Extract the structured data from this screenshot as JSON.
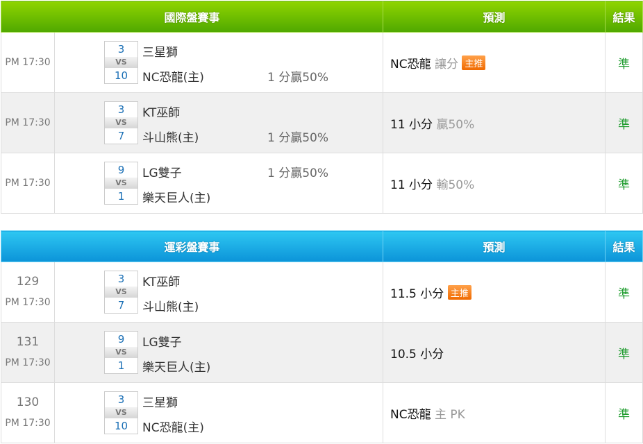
{
  "intl": {
    "title": "國際盤賽事",
    "pred_header": "預測",
    "result_header": "結果",
    "rows": [
      {
        "time": "PM 17:30",
        "home_score": "3",
        "away_score": "10",
        "vs": "VS",
        "team1": "三星獅",
        "team2": "NC恐龍(主)",
        "handicap1": "",
        "handicap2": "1 分贏50%",
        "pred_main": "NC恐龍",
        "pred_sub": "讓分",
        "badge": "主推",
        "result": "準"
      },
      {
        "time": "PM 17:30",
        "home_score": "3",
        "away_score": "7",
        "vs": "VS",
        "team1": "KT巫師",
        "team2": "斗山熊(主)",
        "handicap1": "",
        "handicap2": "1 分贏50%",
        "pred_main": "11 小分",
        "pred_sub": "贏50%",
        "badge": "",
        "result": "準"
      },
      {
        "time": "PM 17:30",
        "home_score": "9",
        "away_score": "1",
        "vs": "VS",
        "team1": "LG雙子",
        "team2": "樂天巨人(主)",
        "handicap1": "1 分贏50%",
        "handicap2": "",
        "pred_main": "11 小分",
        "pred_sub": "輸50%",
        "badge": "",
        "result": "準"
      }
    ]
  },
  "lottery": {
    "title": "運彩盤賽事",
    "pred_header": "預測",
    "result_header": "結果",
    "rows": [
      {
        "num": "129",
        "time": "PM 17:30",
        "home_score": "3",
        "away_score": "7",
        "vs": "VS",
        "team1": "KT巫師",
        "team2": "斗山熊(主)",
        "pred_main": "11.5 小分",
        "pred_sub": "",
        "badge": "主推",
        "result": "準"
      },
      {
        "num": "131",
        "time": "PM 17:30",
        "home_score": "9",
        "away_score": "1",
        "vs": "VS",
        "team1": "LG雙子",
        "team2": "樂天巨人(主)",
        "pred_main": "10.5 小分",
        "pred_sub": "",
        "badge": "",
        "result": "準"
      },
      {
        "num": "130",
        "time": "PM 17:30",
        "home_score": "3",
        "away_score": "10",
        "vs": "VS",
        "team1": "三星獅",
        "team2": "NC恐龍(主)",
        "pred_main": "NC恐龍",
        "pred_sub": "主 PK",
        "badge": "",
        "result": "準"
      }
    ]
  }
}
